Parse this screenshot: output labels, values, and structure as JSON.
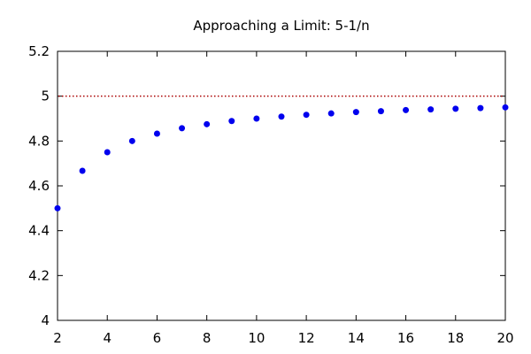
{
  "chart_data": {
    "type": "scatter",
    "title": "Approaching a Limit: 5-1/n",
    "xlabel": "",
    "ylabel": "",
    "xlim": [
      2,
      20
    ],
    "ylim": [
      4,
      5.2
    ],
    "x_ticks": [
      2,
      4,
      6,
      8,
      10,
      12,
      14,
      16,
      18,
      20
    ],
    "y_ticks": [
      4,
      4.2,
      4.4,
      4.6,
      4.8,
      5,
      5.2
    ],
    "x_tick_labels": [
      "2",
      "4",
      "6",
      "8",
      "10",
      "12",
      "14",
      "16",
      "18",
      "20"
    ],
    "y_tick_labels": [
      "4",
      "4.2",
      "4.4",
      "4.6",
      "4.8",
      "5",
      "5.2"
    ],
    "grid": false,
    "legend": "none",
    "series": [
      {
        "color": "#0000ee",
        "marker": "circle",
        "x": [
          2,
          3,
          4,
          5,
          6,
          7,
          8,
          9,
          10,
          11,
          12,
          13,
          14,
          15,
          16,
          17,
          18,
          19,
          20
        ],
        "y": [
          4.5,
          4.667,
          4.75,
          4.8,
          4.833,
          4.857,
          4.875,
          4.889,
          4.9,
          4.909,
          4.917,
          4.923,
          4.929,
          4.933,
          4.938,
          4.941,
          4.944,
          4.947,
          4.95
        ]
      }
    ],
    "reference_lines": [
      {
        "y": 5,
        "style": "dotted",
        "color": "#aa0000"
      }
    ]
  }
}
